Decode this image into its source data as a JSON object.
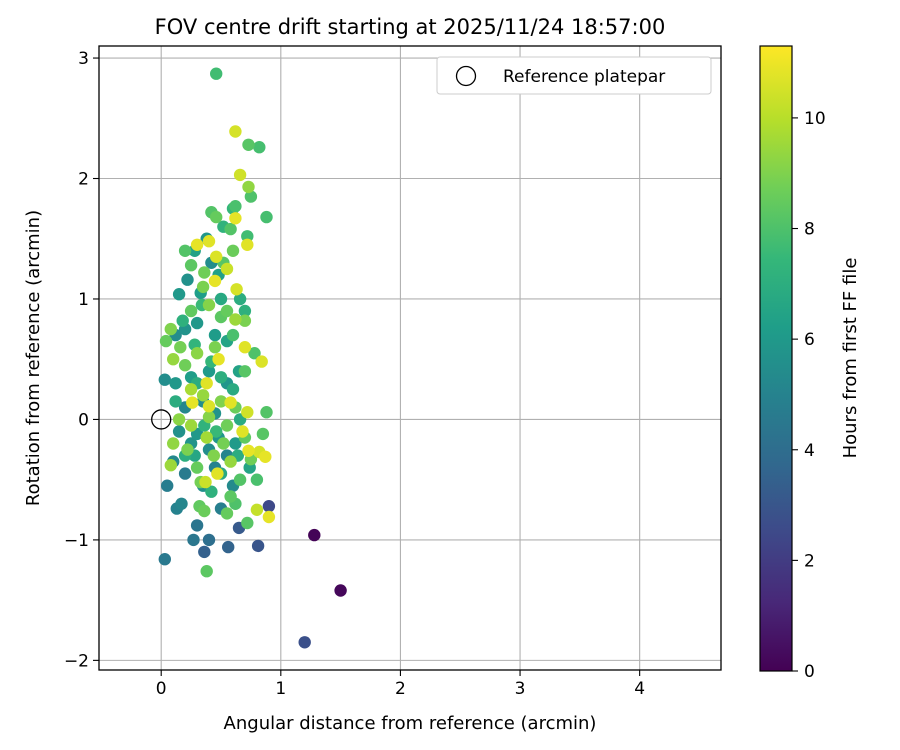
{
  "chart_data": {
    "type": "scatter",
    "title": "FOV centre drift starting at 2025/11/24 18:57:00",
    "xlabel": "Angular distance from reference (arcmin)",
    "ylabel": "Rotation from reference (arcmin)",
    "xlim": [
      -0.52,
      4.68
    ],
    "ylim": [
      -2.08,
      3.1
    ],
    "xticks": [
      0,
      1,
      2,
      3,
      4
    ],
    "yticks": [
      -2,
      -1,
      0,
      1,
      2,
      3
    ],
    "xtick_labels": [
      "0",
      "1",
      "2",
      "3",
      "4"
    ],
    "ytick_labels": [
      "−2",
      "−1",
      "0",
      "1",
      "2",
      "3"
    ],
    "grid": true,
    "legend": {
      "position": "top-right",
      "label": "Reference platepar"
    },
    "reference_point": {
      "x": 0,
      "y": 0
    },
    "colorbar": {
      "label": "Hours from first FF file",
      "range": [
        0,
        11.3
      ],
      "ticks": [
        0,
        2,
        4,
        6,
        8,
        10
      ],
      "tick_labels": [
        "0",
        "2",
        "4",
        "6",
        "8",
        "10"
      ],
      "colormap": "viridis",
      "colors": [
        "#440154",
        "#482878",
        "#3e4989",
        "#31688e",
        "#26828e",
        "#1f9e89",
        "#35b779",
        "#6ece58",
        "#b5de2b",
        "#fde725"
      ]
    },
    "points": [
      [
        1.28,
        -0.96,
        0.1
      ],
      [
        1.5,
        -1.42,
        0.2
      ],
      [
        1.2,
        -1.85,
        2.8
      ],
      [
        0.9,
        -0.72,
        2.5
      ],
      [
        0.65,
        -0.9,
        3.2
      ],
      [
        0.56,
        -1.06,
        3.6
      ],
      [
        0.81,
        -1.05,
        3.0
      ],
      [
        0.36,
        -1.1,
        3.5
      ],
      [
        0.4,
        -1.0,
        4.1
      ],
      [
        0.3,
        -0.88,
        4.4
      ],
      [
        0.27,
        -1.0,
        4.5
      ],
      [
        0.03,
        -1.16,
        4.6
      ],
      [
        0.05,
        -0.55,
        4.8
      ],
      [
        0.13,
        -0.74,
        5.0
      ],
      [
        0.17,
        -0.7,
        5.2
      ],
      [
        0.5,
        -0.74,
        4.9
      ],
      [
        0.1,
        -0.35,
        5.3
      ],
      [
        0.2,
        -0.45,
        4.7
      ],
      [
        0.35,
        -0.55,
        5.6
      ],
      [
        0.45,
        -0.4,
        5.0
      ],
      [
        0.6,
        -0.55,
        5.4
      ],
      [
        0.25,
        -0.2,
        5.8
      ],
      [
        0.4,
        -0.25,
        5.5
      ],
      [
        0.55,
        -0.3,
        5.1
      ],
      [
        0.15,
        -0.1,
        5.7
      ],
      [
        0.3,
        -0.12,
        6.0
      ],
      [
        0.48,
        -0.15,
        5.9
      ],
      [
        0.62,
        -0.2,
        6.1
      ],
      [
        0.2,
        0.1,
        5.2
      ],
      [
        0.35,
        0.15,
        5.5
      ],
      [
        0.45,
        0.05,
        5.8
      ],
      [
        0.03,
        0.33,
        5.5
      ],
      [
        0.12,
        0.3,
        6.0
      ],
      [
        0.25,
        0.35,
        6.3
      ],
      [
        0.4,
        0.4,
        6.1
      ],
      [
        0.55,
        0.3,
        5.9
      ],
      [
        0.65,
        0.4,
        6.5
      ],
      [
        0.12,
        0.7,
        5.5
      ],
      [
        0.2,
        0.75,
        5.8
      ],
      [
        0.3,
        0.8,
        6.0
      ],
      [
        0.45,
        0.7,
        6.2
      ],
      [
        0.55,
        0.65,
        6.6
      ],
      [
        0.15,
        1.04,
        6.0
      ],
      [
        0.22,
        1.16,
        5.7
      ],
      [
        0.33,
        1.05,
        6.3
      ],
      [
        0.42,
        1.3,
        5.5
      ],
      [
        0.48,
        1.2,
        6.4
      ],
      [
        0.28,
        1.4,
        6.5
      ],
      [
        0.38,
        1.5,
        5.9
      ],
      [
        0.66,
        1.0,
        7.0
      ],
      [
        0.7,
        0.9,
        7.2
      ],
      [
        0.5,
        1.0,
        6.8
      ],
      [
        0.52,
        1.6,
        7.3
      ],
      [
        0.6,
        1.75,
        7.5
      ],
      [
        0.72,
        1.52,
        7.8
      ],
      [
        0.88,
        1.68,
        7.9
      ],
      [
        0.75,
        1.85,
        8.1
      ],
      [
        0.73,
        2.28,
        8.3
      ],
      [
        0.82,
        2.26,
        7.9
      ],
      [
        0.46,
        2.87,
        7.8
      ],
      [
        0.66,
        2.03,
        10.5
      ],
      [
        0.62,
        2.39,
        10.6
      ],
      [
        0.73,
        1.93,
        9.4
      ],
      [
        0.62,
        1.67,
        10.9
      ],
      [
        0.4,
        1.48,
        10.8
      ],
      [
        0.46,
        1.35,
        10.7
      ],
      [
        0.3,
        1.45,
        10.9
      ],
      [
        0.72,
        1.45,
        10.8
      ],
      [
        0.55,
        1.25,
        10.4
      ],
      [
        0.45,
        1.15,
        10.9
      ],
      [
        0.63,
        1.08,
        10.6
      ],
      [
        0.7,
        0.6,
        10.8
      ],
      [
        0.84,
        0.48,
        10.7
      ],
      [
        0.48,
        0.5,
        10.9
      ],
      [
        0.38,
        0.3,
        10.8
      ],
      [
        0.26,
        0.14,
        10.9
      ],
      [
        0.4,
        0.11,
        10.7
      ],
      [
        0.58,
        0.14,
        10.8
      ],
      [
        0.72,
        0.06,
        10.5
      ],
      [
        0.68,
        -0.1,
        10.8
      ],
      [
        0.73,
        -0.26,
        10.9
      ],
      [
        0.82,
        -0.27,
        10.6
      ],
      [
        0.87,
        -0.31,
        10.9
      ],
      [
        0.47,
        -0.45,
        10.8
      ],
      [
        0.37,
        -0.52,
        10.4
      ],
      [
        0.9,
        -0.81,
        10.9
      ],
      [
        0.8,
        -0.75,
        10.3
      ],
      [
        0.2,
        1.4,
        8.2
      ],
      [
        0.25,
        1.28,
        8.4
      ],
      [
        0.35,
        1.1,
        9.0
      ],
      [
        0.4,
        0.95,
        9.2
      ],
      [
        0.55,
        0.9,
        8.6
      ],
      [
        0.62,
        0.83,
        9.6
      ],
      [
        0.25,
        0.9,
        8.5
      ],
      [
        0.16,
        0.6,
        8.9
      ],
      [
        0.08,
        0.75,
        9.1
      ],
      [
        0.04,
        0.65,
        8.6
      ],
      [
        0.1,
        0.5,
        9.5
      ],
      [
        0.2,
        0.45,
        8.8
      ],
      [
        0.3,
        0.55,
        9.3
      ],
      [
        0.45,
        0.6,
        9.0
      ],
      [
        0.5,
        0.85,
        8.4
      ],
      [
        0.6,
        0.7,
        8.0
      ],
      [
        0.7,
        0.4,
        8.3
      ],
      [
        0.78,
        0.55,
        8.1
      ],
      [
        0.25,
        0.25,
        9.8
      ],
      [
        0.35,
        0.2,
        9.5
      ],
      [
        0.5,
        0.15,
        9.1
      ],
      [
        0.62,
        0.1,
        8.7
      ],
      [
        0.15,
        0.0,
        9.3
      ],
      [
        0.25,
        -0.05,
        9.6
      ],
      [
        0.4,
        0.02,
        9.2
      ],
      [
        0.55,
        -0.05,
        8.8
      ],
      [
        0.1,
        -0.2,
        9.4
      ],
      [
        0.22,
        -0.25,
        9.0
      ],
      [
        0.38,
        -0.15,
        9.7
      ],
      [
        0.52,
        -0.2,
        8.9
      ],
      [
        0.7,
        -0.15,
        8.5
      ],
      [
        0.85,
        -0.12,
        8.3
      ],
      [
        0.3,
        -0.4,
        8.6
      ],
      [
        0.44,
        -0.3,
        9.1
      ],
      [
        0.58,
        -0.35,
        9.5
      ],
      [
        0.75,
        -0.33,
        8.8
      ],
      [
        0.08,
        -0.38,
        9.6
      ],
      [
        0.33,
        -0.52,
        8.9
      ],
      [
        0.8,
        -0.5,
        8.0
      ],
      [
        0.66,
        -0.5,
        8.2
      ],
      [
        0.58,
        -0.64,
        8.4
      ],
      [
        0.62,
        -0.7,
        8.1
      ],
      [
        0.55,
        -0.78,
        8.6
      ],
      [
        0.72,
        -0.86,
        8.3
      ],
      [
        0.32,
        -0.72,
        8.5
      ],
      [
        0.36,
        -0.76,
        8.7
      ],
      [
        0.38,
        -1.26,
        8.4
      ],
      [
        0.88,
        0.06,
        8.2
      ],
      [
        0.7,
        0.82,
        9.0
      ],
      [
        0.58,
        1.58,
        8.2
      ],
      [
        0.46,
        1.68,
        8.6
      ],
      [
        0.42,
        1.72,
        8.2
      ],
      [
        0.62,
        1.77,
        8.0
      ],
      [
        0.52,
        1.3,
        8.3
      ],
      [
        0.6,
        1.4,
        8.7
      ],
      [
        0.36,
        1.22,
        8.8
      ],
      [
        0.3,
        0.3,
        7.0
      ],
      [
        0.42,
        0.48,
        7.5
      ],
      [
        0.18,
        0.82,
        7.2
      ],
      [
        0.28,
        0.62,
        7.4
      ],
      [
        0.5,
        0.35,
        7.1
      ],
      [
        0.6,
        0.25,
        6.9
      ],
      [
        0.12,
        0.15,
        7.0
      ],
      [
        0.36,
        -0.05,
        7.3
      ],
      [
        0.46,
        -0.1,
        7.6
      ],
      [
        0.2,
        -0.3,
        7.1
      ],
      [
        0.5,
        -0.45,
        6.8
      ],
      [
        0.42,
        -0.6,
        7.2
      ],
      [
        0.28,
        -0.3,
        6.7
      ],
      [
        0.64,
        -0.3,
        7.0
      ],
      [
        0.74,
        -0.4,
        6.6
      ],
      [
        0.66,
        0.0,
        6.9
      ],
      [
        0.34,
        0.95,
        7.6
      ]
    ]
  }
}
